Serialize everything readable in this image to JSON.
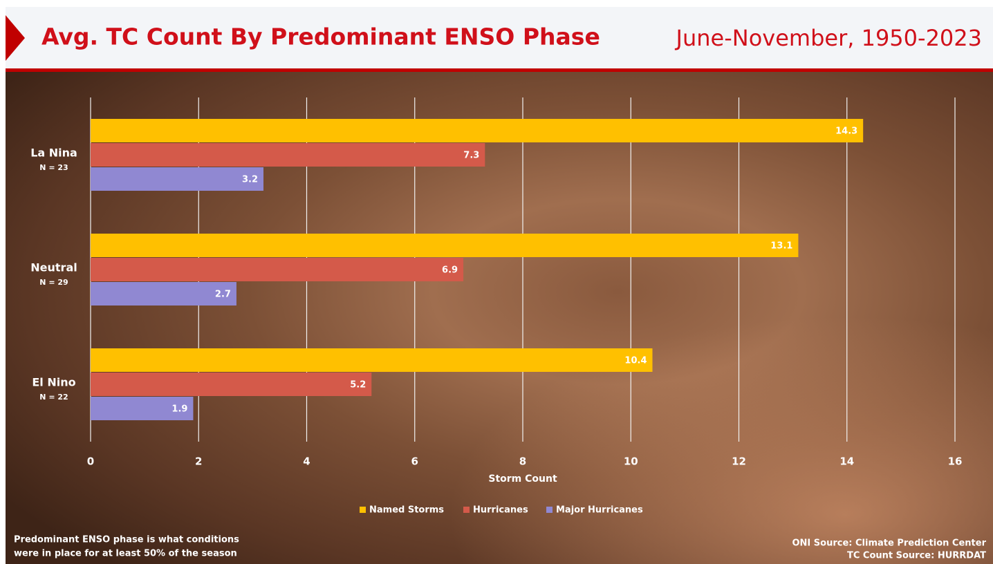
{
  "chart_data": {
    "type": "bar",
    "title": "Avg. TC Count By Predominant ENSO Phase",
    "subtitle": "June-November, 1950-2023",
    "categories": [
      "La Nina",
      "Neutral",
      "El Nino"
    ],
    "sample_sizes": [
      "N = 23",
      "N = 29",
      "N = 22"
    ],
    "series": [
      {
        "name": "Named Storms",
        "color": "#FFC000",
        "values": [
          14.3,
          13.1,
          10.4
        ]
      },
      {
        "name": "Hurricanes",
        "color": "#D45A4A",
        "values": [
          7.3,
          6.9,
          5.2
        ]
      },
      {
        "name": "Major Hurricanes",
        "color": "#9088D2",
        "values": [
          3.2,
          2.7,
          1.9
        ]
      }
    ],
    "xlabel": "Storm Count",
    "xlim": [
      0,
      16
    ],
    "xticks": [
      0,
      2,
      4,
      6,
      8,
      10,
      12,
      14,
      16
    ],
    "grid": true,
    "notes": {
      "left": [
        "Predominant ENSO phase is what conditions",
        "were in place for at least 50% of the season"
      ],
      "right": [
        "ONI Source: Climate Prediction Center",
        "TC Count Source: HURRDAT"
      ]
    }
  }
}
